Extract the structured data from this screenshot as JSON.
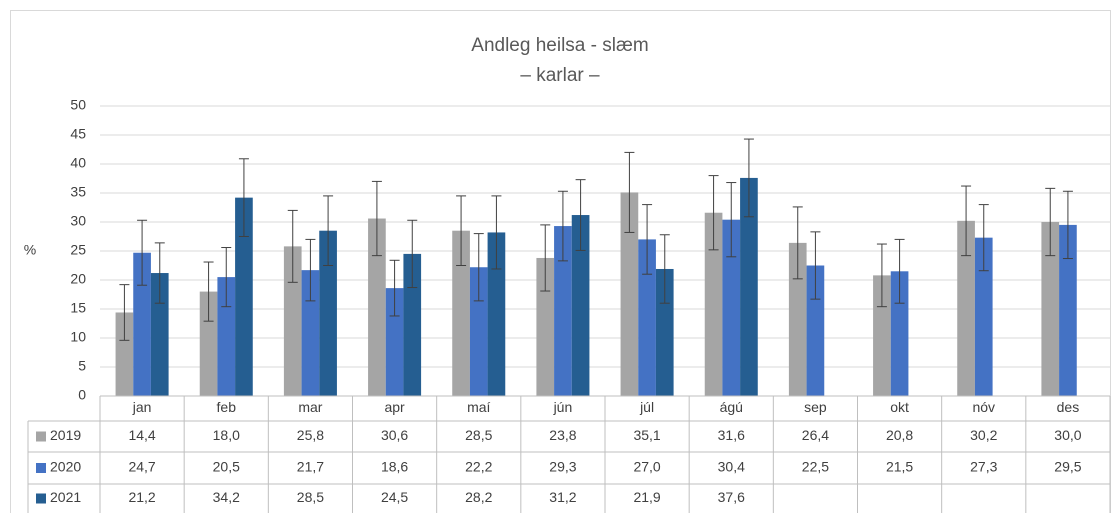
{
  "chart_data": {
    "type": "bar",
    "title": "Andleg heilsa - slæm",
    "subtitle": "– karlar –",
    "y_label": "%",
    "categories": [
      "jan",
      "feb",
      "mar",
      "apr",
      "maí",
      "jún",
      "júl",
      "ágú",
      "sep",
      "okt",
      "nóv",
      "des"
    ],
    "series": [
      {
        "name": "2019",
        "color": "#a5a5a5",
        "values": [
          14.4,
          18.0,
          25.8,
          30.6,
          28.5,
          23.8,
          35.1,
          31.6,
          26.4,
          20.8,
          30.2,
          30.0
        ],
        "value_labels": [
          "14,4",
          "18,0",
          "25,8",
          "30,6",
          "28,5",
          "23,8",
          "35,1",
          "31,6",
          "26,4",
          "20,8",
          "30,2",
          "30,0"
        ],
        "errors": [
          4.8,
          5.1,
          6.2,
          6.4,
          6.0,
          5.7,
          6.9,
          6.4,
          6.2,
          5.4,
          6.0,
          5.8
        ]
      },
      {
        "name": "2020",
        "color": "#4472c4",
        "values": [
          24.7,
          20.5,
          21.7,
          18.6,
          22.2,
          29.3,
          27.0,
          30.4,
          22.5,
          21.5,
          27.3,
          29.5
        ],
        "value_labels": [
          "24,7",
          "20,5",
          "21,7",
          "18,6",
          "22,2",
          "29,3",
          "27,0",
          "30,4",
          "22,5",
          "21,5",
          "27,3",
          "29,5"
        ],
        "errors": [
          5.6,
          5.1,
          5.3,
          4.8,
          5.8,
          6.0,
          6.0,
          6.4,
          5.8,
          5.5,
          5.7,
          5.8
        ]
      },
      {
        "name": "2021",
        "color": "#255e91",
        "values": [
          21.2,
          34.2,
          28.5,
          24.5,
          28.2,
          31.2,
          21.9,
          37.6,
          null,
          null,
          null,
          null
        ],
        "value_labels": [
          "21,2",
          "34,2",
          "28,5",
          "24,5",
          "28,2",
          "31,2",
          "21,9",
          "37,6",
          null,
          null,
          null,
          null
        ],
        "errors": [
          5.2,
          6.7,
          6.0,
          5.8,
          6.3,
          6.1,
          5.9,
          6.7,
          null,
          null,
          null,
          null
        ]
      }
    ],
    "ylim": [
      0,
      50
    ],
    "yticks": [
      0,
      5,
      10,
      15,
      20,
      25,
      30,
      35,
      40,
      45,
      50
    ],
    "grid": true
  }
}
